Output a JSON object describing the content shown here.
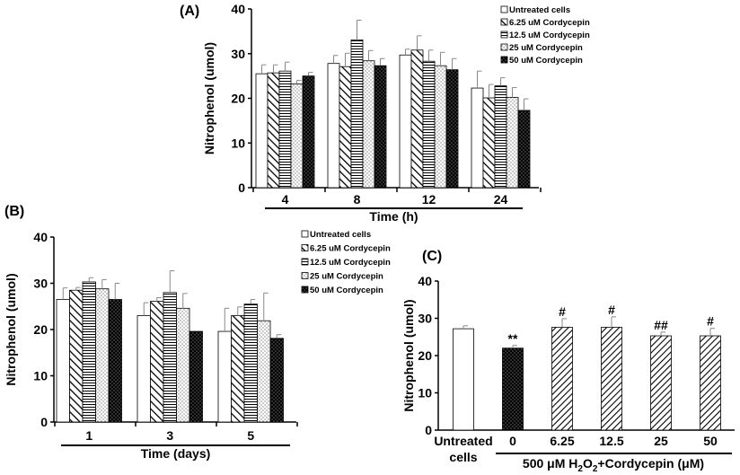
{
  "chart_data": [
    {
      "panel": "(A)",
      "type": "bar",
      "categories": [
        "4",
        "8",
        "12",
        "24"
      ],
      "xlabel": "Time (h)",
      "ylabel": "Nitrophenol (umol)",
      "ylim": [
        0,
        40
      ],
      "yticks": [
        "0",
        "10",
        "20",
        "30",
        "40"
      ],
      "legend_position": "top-right",
      "series": [
        {
          "name": "Untreated cells",
          "pattern": "white",
          "values": [
            25.5,
            27.8,
            29.7,
            22.3
          ],
          "errors": [
            2.0,
            1.8,
            1.3,
            3.8
          ]
        },
        {
          "name": "6.25 uM Cordycepin",
          "pattern": "diag",
          "values": [
            25.7,
            27.1,
            30.8,
            20.1
          ],
          "errors": [
            1.8,
            3.0,
            3.2,
            3.0
          ]
        },
        {
          "name": "12.5 uM Cordycepin",
          "pattern": "horiz",
          "values": [
            26.1,
            33.1,
            28.3,
            22.8
          ],
          "errors": [
            2.0,
            4.4,
            2.5,
            1.8
          ]
        },
        {
          "name": "25 uM Cordycepin",
          "pattern": "dots",
          "values": [
            23.2,
            28.4,
            27.3,
            20.2
          ],
          "errors": [
            0.8,
            2.3,
            3.0,
            2.2
          ]
        },
        {
          "name": "50 uM Cordycepin",
          "pattern": "black",
          "values": [
            25.0,
            27.3,
            26.4,
            17.3
          ],
          "errors": [
            0.8,
            1.6,
            2.5,
            2.6
          ]
        }
      ]
    },
    {
      "panel": "(B)",
      "type": "bar",
      "categories": [
        "1",
        "3",
        "5"
      ],
      "xlabel": "Time (days)",
      "ylabel": "Nitrophenol (umol)",
      "ylim": [
        0,
        40
      ],
      "yticks": [
        "0",
        "10",
        "20",
        "30",
        "40"
      ],
      "legend_position": "top-right",
      "series": [
        {
          "name": "Untreated cells",
          "pattern": "white",
          "values": [
            26.5,
            23.0,
            19.6
          ],
          "errors": [
            2.5,
            2.8,
            5.0
          ]
        },
        {
          "name": "6.25 uM Cordycepin",
          "pattern": "diag",
          "values": [
            28.5,
            26.1,
            23.0
          ],
          "errors": [
            0.6,
            0.8,
            1.9
          ]
        },
        {
          "name": "12.5 uM Cordycepin",
          "pattern": "horiz",
          "values": [
            30.3,
            28.0,
            25.5
          ],
          "errors": [
            0.9,
            4.7,
            1.0
          ]
        },
        {
          "name": "25 uM Cordycepin",
          "pattern": "dots",
          "values": [
            28.8,
            24.6,
            21.9
          ],
          "errors": [
            2.0,
            3.2,
            6.0
          ]
        },
        {
          "name": "50 uM Cordycepin",
          "pattern": "black",
          "values": [
            26.5,
            19.6,
            18.1
          ],
          "errors": [
            3.5,
            0.0,
            0.8
          ]
        }
      ]
    },
    {
      "panel": "(C)",
      "type": "bar",
      "categories": [
        "Untreated cells",
        "0",
        "6.25",
        "12.5",
        "25",
        "50"
      ],
      "category_line1": "Untreated",
      "category_line2": "cells",
      "xlabel_parts": {
        "pre": "500 μM H",
        "sub1": "2",
        "mid": "O",
        "sub2": "2",
        "post": "+Cordycepin (μM)"
      },
      "ylabel": "Nitrophenol (umol)",
      "ylim": [
        0,
        40
      ],
      "yticks": [
        "0",
        "10",
        "20",
        "30",
        "40"
      ],
      "values": [
        27.2,
        22.0,
        27.6,
        27.6,
        25.3,
        25.3
      ],
      "errors": [
        0.8,
        0.7,
        2.3,
        2.8,
        1.0,
        2.0
      ],
      "patterns": [
        "white",
        "black",
        "diag2",
        "diag2",
        "diag2",
        "diag2"
      ],
      "annotations": [
        "",
        "**",
        "#",
        "#",
        "##",
        "#"
      ]
    }
  ]
}
